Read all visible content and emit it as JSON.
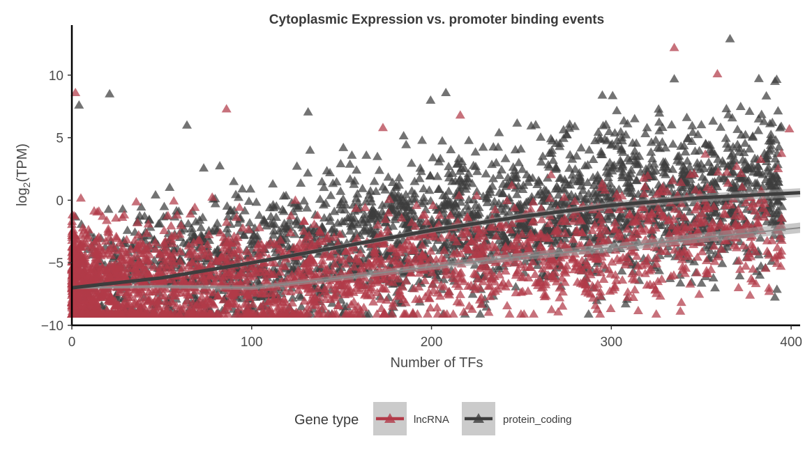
{
  "chart_data": {
    "type": "scatter",
    "title": "Cytoplasmic Expression vs. promoter binding events",
    "xlabel": "Number of TFs",
    "ylabel_main": "log",
    "ylabel_sub": "2",
    "ylabel_rest": "(TPM)",
    "xlim": [
      0,
      405
    ],
    "ylim": [
      -10,
      14
    ],
    "x_ticks": [
      0,
      100,
      200,
      300,
      400
    ],
    "x_tick_labels": [
      "0",
      "100",
      "200",
      "300",
      "400"
    ],
    "y_ticks": [
      -10,
      -5,
      0,
      5,
      10
    ],
    "y_tick_labels": [
      "−10",
      "−5",
      "0",
      "5",
      "10"
    ],
    "grid": false,
    "legend": {
      "title": "Gene type",
      "position": "bottom"
    },
    "series": [
      {
        "name": "lncRNA",
        "color": "#b23a48",
        "marker": "triangle",
        "fit_line": [
          [
            0,
            -7.0
          ],
          [
            50,
            -6.9
          ],
          [
            100,
            -7.0
          ],
          [
            150,
            -6.2
          ],
          [
            200,
            -5.3
          ],
          [
            250,
            -4.5
          ],
          [
            300,
            -3.8
          ],
          [
            350,
            -3.0
          ],
          [
            405,
            -2.2
          ]
        ],
        "outliers": [
          [
            2,
            8.6
          ],
          [
            86,
            7.3
          ],
          [
            173,
            5.8
          ],
          [
            216,
            6.8
          ],
          [
            335,
            12.2
          ],
          [
            359,
            10.1
          ],
          [
            399,
            5.7
          ]
        ]
      },
      {
        "name": "protein_coding",
        "color": "#3d3d3d",
        "marker": "triangle",
        "fit_line": [
          [
            0,
            -7.0
          ],
          [
            50,
            -6.2
          ],
          [
            100,
            -5.0
          ],
          [
            150,
            -3.7
          ],
          [
            200,
            -2.4
          ],
          [
            250,
            -1.3
          ],
          [
            300,
            -0.4
          ],
          [
            350,
            0.2
          ],
          [
            405,
            0.6
          ]
        ],
        "outliers": [
          [
            4,
            7.6
          ],
          [
            21,
            8.5
          ],
          [
            64,
            6.0
          ],
          [
            208,
            8.6
          ],
          [
            295,
            8.4
          ],
          [
            335,
            9.7
          ],
          [
            366,
            12.9
          ],
          [
            391,
            9.5
          ]
        ]
      }
    ]
  }
}
